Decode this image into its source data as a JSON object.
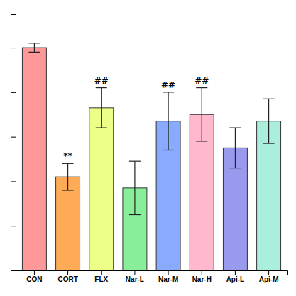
{
  "chart_data": {
    "type": "bar",
    "categories": [
      "CON",
      "CORT",
      "FLX",
      "Nar-L",
      "Nar-M",
      "Nar-H",
      "Api-L",
      "Api-M"
    ],
    "values": [
      100,
      42,
      73,
      37,
      67,
      70,
      55,
      67
    ],
    "errors": [
      2,
      6,
      9,
      12,
      13,
      12,
      9,
      10
    ],
    "colors": [
      "#FF9999",
      "#FFAA55",
      "#EEFF88",
      "#88EE99",
      "#88AAFF",
      "#FFB8CC",
      "#9999EE",
      "#AAEEDD"
    ],
    "annotations": [
      {
        "text": "**",
        "category": "CORT"
      },
      {
        "text": "##",
        "category": "FLX"
      },
      {
        "text": "##",
        "category": "Nar-M"
      },
      {
        "text": "##",
        "category": "Nar-H"
      }
    ],
    "ylim": [
      0,
      115
    ],
    "yticks": [
      20,
      40,
      60,
      80,
      100
    ],
    "grid": false,
    "tick_labels": "x"
  }
}
